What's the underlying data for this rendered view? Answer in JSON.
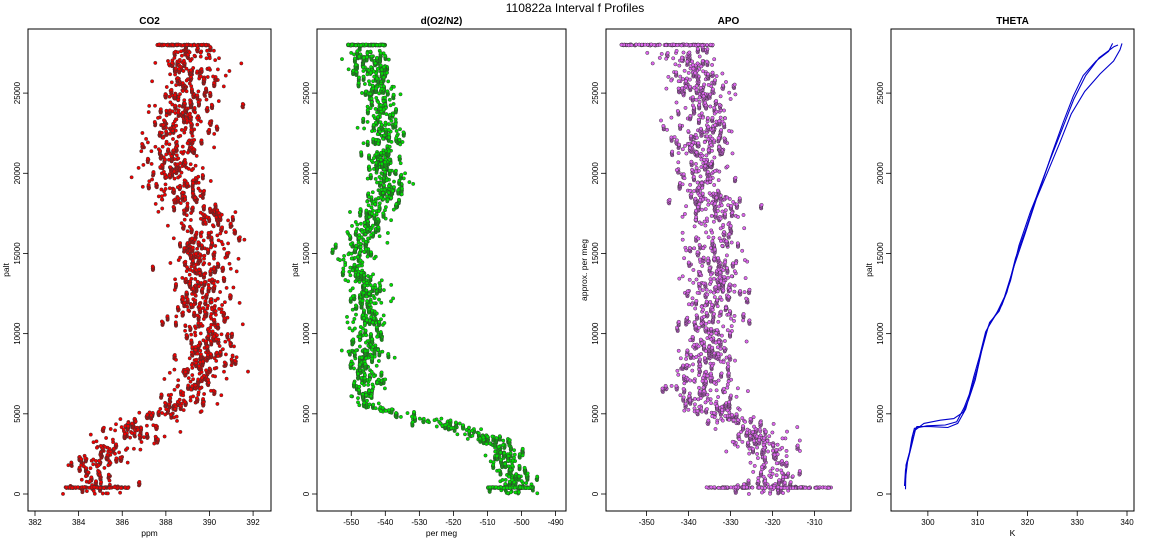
{
  "figure": {
    "title": "110822a   Interval f Profiles"
  },
  "colors": {
    "co2": "#ee0000",
    "o2n2": "#00dd00",
    "apo": "#dd66ee",
    "theta": "#0000cc",
    "outline": "#333333"
  },
  "chart_data": [
    {
      "type": "scatter",
      "title": "CO2",
      "xlabel": "ppm",
      "ylabel": "palt",
      "xlim": [
        382,
        392.5
      ],
      "ylim": [
        0,
        28000
      ],
      "xticks": [
        382,
        384,
        386,
        388,
        390,
        392
      ],
      "xtick_labels": [
        "382",
        "384",
        "386",
        "388",
        "390",
        "392"
      ],
      "yticks": [
        0,
        5000,
        10000,
        15000,
        20000,
        25000
      ],
      "ytick_labels": [
        "0",
        "5000",
        "10000",
        "15000",
        "20000",
        "25000"
      ],
      "grid": false,
      "series": [
        {
          "profile": [
            [
              0,
              384.8
            ],
            [
              400,
              385.2
            ],
            [
              1000,
              384.5
            ],
            [
              1800,
              384.6
            ],
            [
              2500,
              385.3
            ],
            [
              3200,
              385.9
            ],
            [
              3800,
              386.3
            ],
            [
              4400,
              387.0
            ],
            [
              4900,
              387.8
            ],
            [
              5500,
              388.4
            ],
            [
              6500,
              389.3
            ],
            [
              8000,
              389.7
            ],
            [
              9500,
              389.9
            ],
            [
              11000,
              389.6
            ],
            [
              12500,
              389.7
            ],
            [
              14000,
              389.4
            ],
            [
              15500,
              389.8
            ],
            [
              17000,
              389.9
            ],
            [
              18500,
              388.8
            ],
            [
              20000,
              388.3
            ],
            [
              21500,
              388.6
            ],
            [
              23000,
              388.7
            ],
            [
              24500,
              388.9
            ],
            [
              26000,
              389.1
            ],
            [
              27200,
              389.2
            ],
            [
              28000,
              389.5
            ]
          ],
          "spread": 0.75,
          "points_per_profile": 340,
          "cap_altitude": 28000,
          "cap_range": [
            387.6,
            390.0
          ],
          "floor_altitude": 400,
          "floor_range": [
            383.4,
            386.3
          ]
        }
      ]
    },
    {
      "type": "scatter",
      "title": "d(O2/N2)",
      "xlabel": "per meg",
      "ylabel": "palt",
      "xlim": [
        -558,
        -489
      ],
      "ylim": [
        0,
        28000
      ],
      "xticks": [
        -550,
        -540,
        -530,
        -520,
        -510,
        -500,
        -490
      ],
      "xtick_labels": [
        "-550",
        "-540",
        "-530",
        "-520",
        "-510",
        "-500",
        "-490"
      ],
      "yticks": [
        0,
        5000,
        10000,
        15000,
        20000,
        25000
      ],
      "ytick_labels": [
        "0",
        "5000",
        "10000",
        "15000",
        "20000",
        "25000"
      ],
      "grid": false,
      "series": [
        {
          "profile": [
            [
              0,
              -503
            ],
            [
              800,
              -502
            ],
            [
              1600,
              -504
            ],
            [
              2400,
              -505
            ],
            [
              3200,
              -508
            ],
            [
              3800,
              -514
            ],
            [
              4300,
              -522
            ],
            [
              4800,
              -532
            ],
            [
              5300,
              -542
            ],
            [
              6000,
              -547
            ],
            [
              7000,
              -546
            ],
            [
              8500,
              -546
            ],
            [
              10000,
              -545
            ],
            [
              11500,
              -544
            ],
            [
              13000,
              -545
            ],
            [
              14500,
              -549
            ],
            [
              16000,
              -546
            ],
            [
              17500,
              -544
            ],
            [
              19000,
              -538
            ],
            [
              20500,
              -541
            ],
            [
              22000,
              -540
            ],
            [
              23500,
              -540
            ],
            [
              25000,
              -542
            ],
            [
              26500,
              -544
            ],
            [
              28000,
              -545
            ]
          ],
          "spread": 2.8,
          "points_per_profile": 340,
          "cap_altitude": 28000,
          "cap_range": [
            -551,
            -540
          ],
          "floor_altitude": 400,
          "floor_range": [
            -510,
            -497
          ]
        }
      ]
    },
    {
      "type": "scatter",
      "title": "APO",
      "xlabel": "",
      "ylabel": "approx. per meg",
      "xlim": [
        -358,
        -303
      ],
      "ylim": [
        0,
        28000
      ],
      "xticks": [
        -350,
        -340,
        -330,
        -320,
        -310
      ],
      "xtick_labels": [
        "-350",
        "-340",
        "-330",
        "-320",
        "-310"
      ],
      "yticks": [
        0,
        5000,
        10000,
        15000,
        20000,
        25000
      ],
      "ytick_labels": [
        "0",
        "5000",
        "10000",
        "15000",
        "20000",
        "25000"
      ],
      "grid": false,
      "series": [
        {
          "profile": [
            [
              0,
              -322
            ],
            [
              1000,
              -321
            ],
            [
              2000,
              -321
            ],
            [
              3000,
              -322
            ],
            [
              4000,
              -324
            ],
            [
              5000,
              -334
            ],
            [
              6500,
              -337
            ],
            [
              8000,
              -336
            ],
            [
              10000,
              -335
            ],
            [
              12000,
              -334
            ],
            [
              14000,
              -334
            ],
            [
              16000,
              -334
            ],
            [
              18000,
              -334
            ],
            [
              20000,
              -337
            ],
            [
              22000,
              -337
            ],
            [
              24000,
              -337
            ],
            [
              26000,
              -338
            ],
            [
              28000,
              -340
            ]
          ],
          "spread": 3.6,
          "points_per_profile": 340,
          "cap_altitude": 28000,
          "cap_range": [
            -356,
            -334
          ],
          "floor_altitude": 400,
          "floor_range": [
            -336,
            -306
          ]
        }
      ]
    },
    {
      "type": "line",
      "title": "THETA",
      "xlabel": "K",
      "ylabel": "palt",
      "xlim": [
        294,
        340
      ],
      "ylim": [
        0,
        28000
      ],
      "xticks": [
        300,
        310,
        320,
        330,
        340
      ],
      "xtick_labels": [
        "300",
        "310",
        "320",
        "330",
        "340"
      ],
      "yticks": [
        0,
        5000,
        10000,
        15000,
        20000,
        25000
      ],
      "ytick_labels": [
        "0",
        "5000",
        "10000",
        "15000",
        "20000",
        "25000"
      ],
      "grid": false,
      "series": [
        {
          "name": "",
          "points": [
            [
              295.5,
              300
            ],
            [
              295.6,
              1800
            ],
            [
              296.3,
              2600
            ],
            [
              296.8,
              3500
            ],
            [
              297.3,
              4100
            ],
            [
              299.8,
              4250
            ],
            [
              303.5,
              4300
            ],
            [
              305.8,
              4500
            ],
            [
              307.3,
              5400
            ],
            [
              308.3,
              6200
            ],
            [
              309.2,
              7300
            ],
            [
              310.4,
              8600
            ],
            [
              311.6,
              10100
            ],
            [
              313.0,
              10900
            ],
            [
              314.9,
              11800
            ],
            [
              316.6,
              13300
            ],
            [
              318.3,
              15500
            ],
            [
              320.6,
              17600
            ],
            [
              322.8,
              19300
            ],
            [
              325.0,
              21300
            ],
            [
              327.2,
              23200
            ],
            [
              329.2,
              24800
            ],
            [
              331.2,
              26100
            ],
            [
              333.8,
              27000
            ],
            [
              336.3,
              27600
            ],
            [
              337.1,
              28100
            ]
          ]
        },
        {
          "name": "",
          "points": [
            [
              295.3,
              500
            ],
            [
              295.5,
              1500
            ],
            [
              296.5,
              2800
            ],
            [
              297.1,
              3800
            ],
            [
              297.8,
              4200
            ],
            [
              300.5,
              4200
            ],
            [
              304.0,
              4150
            ],
            [
              306.0,
              4400
            ],
            [
              307.6,
              5300
            ],
            [
              308.7,
              6500
            ],
            [
              309.9,
              7800
            ],
            [
              311.2,
              9500
            ],
            [
              312.4,
              10700
            ],
            [
              314.3,
              11400
            ],
            [
              315.9,
              12600
            ],
            [
              317.6,
              14700
            ],
            [
              319.8,
              16600
            ],
            [
              322.1,
              18800
            ],
            [
              324.5,
              20800
            ],
            [
              326.9,
              22700
            ],
            [
              329.3,
              24600
            ],
            [
              331.7,
              26100
            ],
            [
              334.4,
              27200
            ],
            [
              337.4,
              27900
            ],
            [
              338.2,
              28000
            ]
          ]
        },
        {
          "name": "",
          "points": [
            [
              295.4,
              700
            ],
            [
              295.9,
              2000
            ],
            [
              296.8,
              3100
            ],
            [
              297.5,
              4000
            ],
            [
              299.2,
              4400
            ],
            [
              302.5,
              4600
            ],
            [
              305.2,
              4700
            ],
            [
              307.1,
              5100
            ],
            [
              308.2,
              5900
            ],
            [
              309.5,
              7100
            ],
            [
              310.8,
              8900
            ],
            [
              312.1,
              10400
            ],
            [
              313.7,
              11200
            ],
            [
              315.4,
              12300
            ],
            [
              317.3,
              14200
            ],
            [
              319.5,
              16200
            ],
            [
              321.8,
              18400
            ],
            [
              324.1,
              20100
            ],
            [
              326.5,
              21900
            ],
            [
              328.8,
              23700
            ],
            [
              331.5,
              25100
            ],
            [
              334.6,
              26200
            ],
            [
              337.3,
              27000
            ],
            [
              338.6,
              27700
            ],
            [
              339.0,
              28100
            ]
          ]
        }
      ]
    }
  ]
}
